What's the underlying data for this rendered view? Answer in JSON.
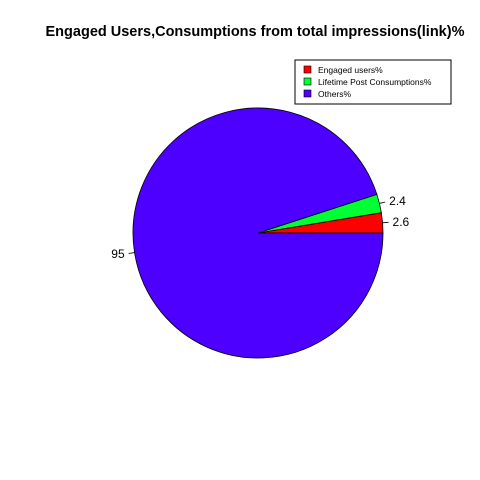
{
  "chart_data": {
    "type": "pie",
    "title": "Engaged Users,Consumptions from total impressions(link)%",
    "legend_position": "top-right",
    "series": [
      {
        "name": "Engaged users%",
        "value": 2.6,
        "label": "2.6",
        "color": "#ff0000"
      },
      {
        "name": "Lifetime Post Consumptions%",
        "value": 2.4,
        "label": "2.4",
        "color": "#00ff33"
      },
      {
        "name": "Others%",
        "value": 95,
        "label": "95",
        "color": "#4d00ff"
      }
    ]
  }
}
